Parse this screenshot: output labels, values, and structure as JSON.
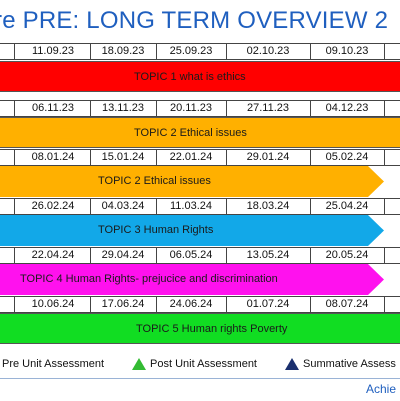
{
  "title": "re PRE: LONG TERM OVERVIEW 2",
  "rows": [
    {
      "dates": [
        "11.09.23",
        "18.09.23",
        "25.09.23",
        "02.10.23",
        "09.10.23"
      ],
      "topic": "TOPIC 1 what is ethics",
      "color": "#ff0000"
    },
    {
      "dates": [
        "06.11.23",
        "13.11.23",
        "20.11.23",
        "27.11.23",
        "04.12.23"
      ],
      "topic": "TOPIC 2 Ethical issues",
      "color": "#ffb000"
    },
    {
      "dates": [
        "08.01.24",
        "15.01.24",
        "22.01.24",
        "29.01.24",
        "05.02.24"
      ],
      "topic": "TOPIC 2 Ethical issues",
      "color": "#ffb000"
    },
    {
      "dates": [
        "26.02.24",
        "04.03.24",
        "11.03.24",
        "18.03.24",
        "25.04.24"
      ],
      "topic": "TOPIC 3 Human Rights",
      "color": "#12a8e8"
    },
    {
      "dates": [
        "22.04.24",
        "29.04.24",
        "06.05.24",
        "13.05.24",
        "20.05.24"
      ],
      "topic": "TOPIC 4 Human Rights- prejucice and discrimination",
      "color": "#ff11ee"
    },
    {
      "dates": [
        "10.06.24",
        "17.06.24",
        "24.06.24",
        "01.07.24",
        "08.07.24"
      ],
      "topic": "TOPIC 5  Human rights Poverty",
      "color": "#11dd22"
    }
  ],
  "legend": {
    "pre": "Pre Unit Assessment",
    "post": "Post Unit Assessment",
    "summative": "Summative Assess",
    "post_color": "#33bb33",
    "summative_color": "#1a2f6e"
  },
  "footer": "Achie"
}
